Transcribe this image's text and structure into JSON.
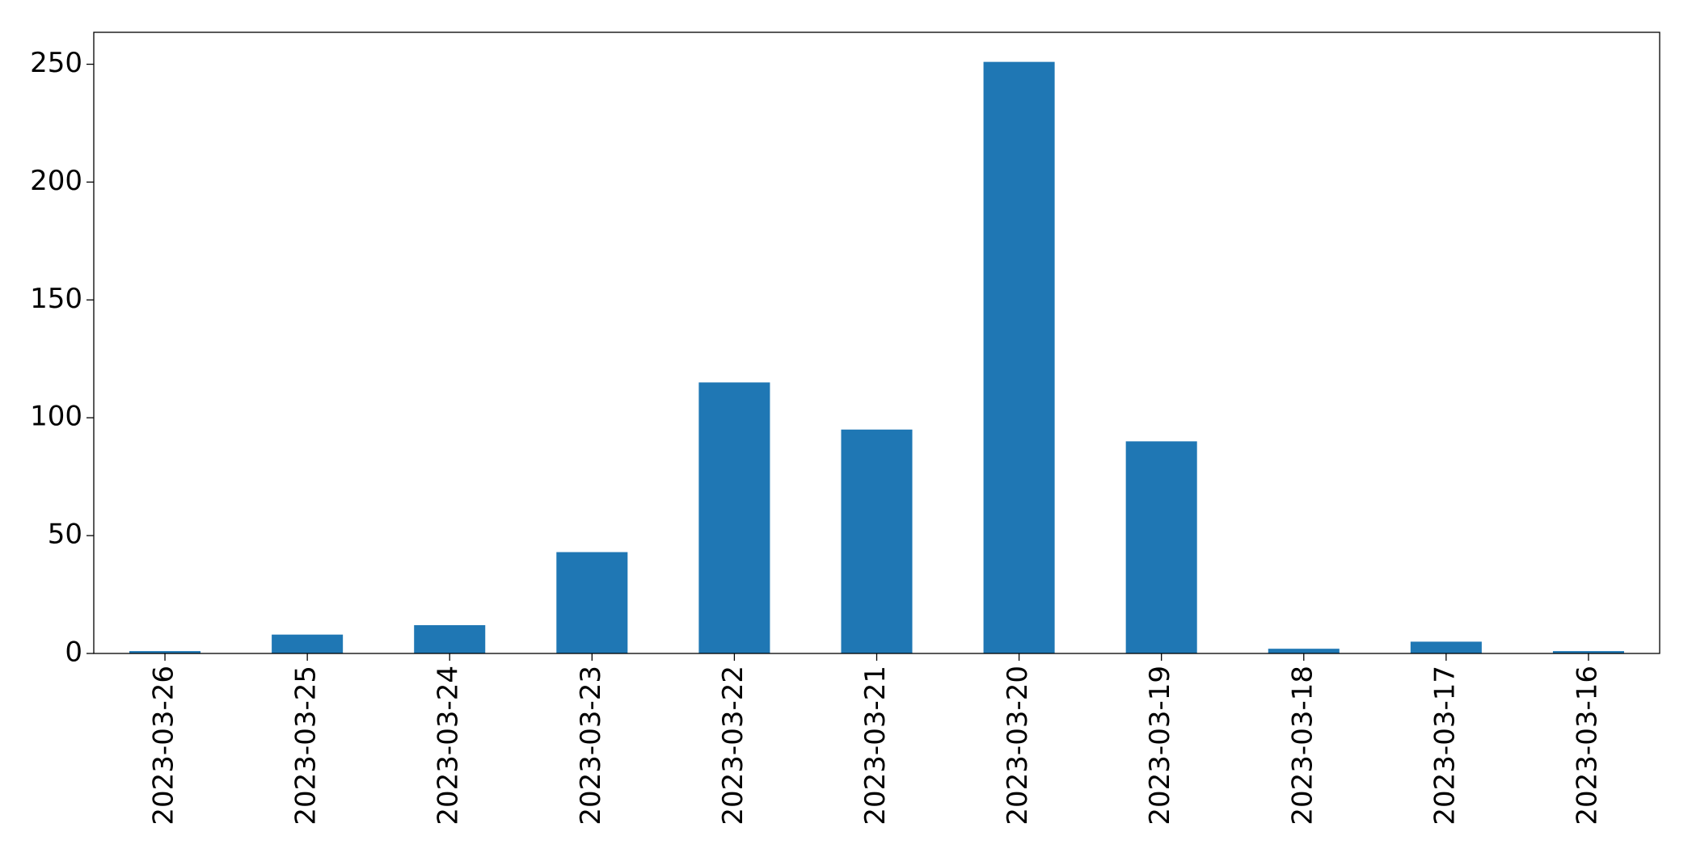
{
  "chart_data": {
    "type": "bar",
    "categories": [
      "2023-03-26",
      "2023-03-25",
      "2023-03-24",
      "2023-03-23",
      "2023-03-22",
      "2023-03-21",
      "2023-03-20",
      "2023-03-19",
      "2023-03-18",
      "2023-03-17",
      "2023-03-16"
    ],
    "values": [
      1,
      8,
      12,
      43,
      115,
      95,
      251,
      90,
      2,
      5,
      1
    ],
    "color": "#1f77b4",
    "ylim": [
      0,
      263.55
    ],
    "yticks": [
      0,
      50,
      100,
      150,
      200,
      250
    ],
    "grid": false
  }
}
